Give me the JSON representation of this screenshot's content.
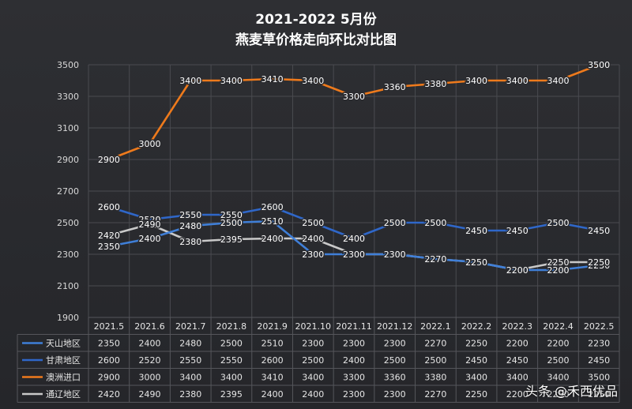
{
  "chart_data": {
    "type": "line",
    "title": "2021-2022  5月份",
    "subtitle": "燕麦草价格走向环比对比图",
    "categories": [
      "2021.5",
      "2021.6",
      "2021.7",
      "2021.8",
      "2021.9",
      "2021.10",
      "2021.11",
      "2021.12",
      "2022.1",
      "2022.2",
      "2022.3",
      "2022.4",
      "2022.5"
    ],
    "ylim": [
      1900,
      3500
    ],
    "yticks": [
      1900,
      2100,
      2300,
      2500,
      2700,
      2900,
      3100,
      3300,
      3500
    ],
    "grid": true,
    "legend": "data-table",
    "series": [
      {
        "name": "天山地区",
        "color": "#3f7fd8",
        "values": [
          2350,
          2400,
          2480,
          2500,
          2510,
          2300,
          2300,
          2300,
          2270,
          2250,
          2200,
          2200,
          2230
        ]
      },
      {
        "name": "甘肃地区",
        "color": "#2f67c9",
        "values": [
          2600,
          2520,
          2550,
          2550,
          2600,
          2500,
          2400,
          2500,
          2500,
          2450,
          2450,
          2500,
          2450
        ]
      },
      {
        "name": "澳洲进口",
        "color": "#ee7a1c",
        "values": [
          2900,
          3000,
          3400,
          3400,
          3410,
          3400,
          3300,
          3360,
          3380,
          3400,
          3400,
          3400,
          3500
        ]
      },
      {
        "name": "通辽地区",
        "color": "#c9c9c9",
        "values": [
          2420,
          2490,
          2380,
          2395,
          2400,
          2400,
          2300,
          2300,
          2270,
          2250,
          2200,
          2250,
          2250
        ]
      }
    ]
  },
  "watermark": "头条 @禾西优品"
}
